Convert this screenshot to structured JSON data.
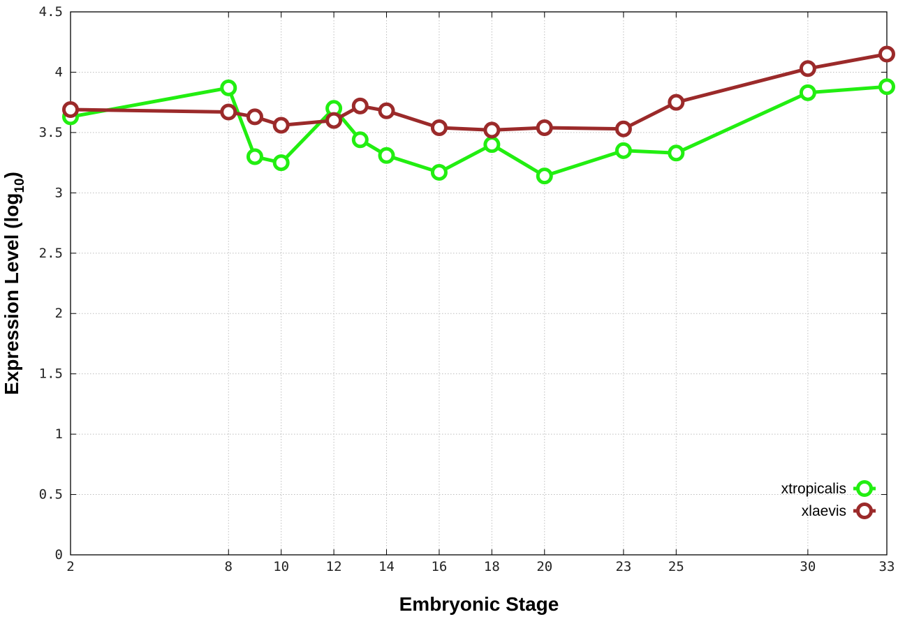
{
  "chart_data": {
    "type": "line",
    "xlabel": "Embryonic Stage",
    "ylabel": "Expression Level (log",
    "ylabel_subscript": "10",
    "ylabel_close": ")",
    "xlim": [
      2,
      33
    ],
    "ylim": [
      0,
      4.5
    ],
    "x_ticks": [
      2,
      8,
      10,
      12,
      14,
      16,
      18,
      20,
      23,
      25,
      30,
      33
    ],
    "x_tick_labels": [
      "2",
      "8",
      "10",
      "12",
      "14",
      "16",
      "18",
      "20",
      "23",
      "25",
      "30",
      "33"
    ],
    "y_ticks": [
      0,
      0.5,
      1,
      1.5,
      2,
      2.5,
      3,
      3.5,
      4,
      4.5
    ],
    "y_tick_labels": [
      "0",
      "0.5",
      "1",
      "1.5",
      "2",
      "2.5",
      "3",
      "3.5",
      "4",
      "4.5"
    ],
    "x": [
      2,
      8,
      9,
      10,
      12,
      13,
      14,
      16,
      18,
      20,
      23,
      25,
      30,
      33
    ],
    "series": [
      {
        "name": "xtropicalis",
        "color": "#22ee11",
        "values": [
          3.63,
          3.87,
          3.3,
          3.25,
          3.7,
          3.44,
          3.31,
          3.17,
          3.4,
          3.14,
          3.35,
          3.33,
          3.83,
          3.88
        ]
      },
      {
        "name": "xlaevis",
        "color": "#9b2a2a",
        "values": [
          3.69,
          3.67,
          3.63,
          3.56,
          3.6,
          3.72,
          3.68,
          3.54,
          3.52,
          3.54,
          3.53,
          3.75,
          4.03,
          4.15
        ]
      }
    ],
    "grid": true,
    "legend_position": "bottom-right"
  }
}
